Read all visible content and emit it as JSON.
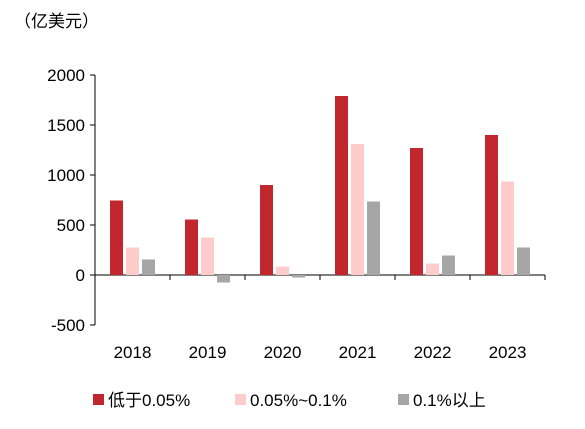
{
  "chart_data": {
    "type": "bar",
    "unit_label": "（亿美元）",
    "categories": [
      "2018",
      "2019",
      "2020",
      "2021",
      "2022",
      "2023"
    ],
    "series": [
      {
        "name": "低于0.05%",
        "color": "#C1272D",
        "values": [
          745,
          555,
          900,
          1790,
          1270,
          1400
        ]
      },
      {
        "name": "0.05%~0.1%",
        "color": "#FFCCCC",
        "values": [
          275,
          375,
          85,
          1310,
          115,
          935
        ]
      },
      {
        "name": "0.1%以上",
        "color": "#A6A6A6",
        "values": [
          155,
          -75,
          -25,
          735,
          195,
          275
        ]
      }
    ],
    "y_ticks": [
      "2000",
      "1500",
      "1000",
      "500",
      "0",
      "-500"
    ],
    "y_tick_values": [
      2000,
      1500,
      1000,
      500,
      0,
      -500
    ],
    "ylim": [
      -500,
      2000
    ],
    "grid": false,
    "legend_position": "bottom"
  }
}
